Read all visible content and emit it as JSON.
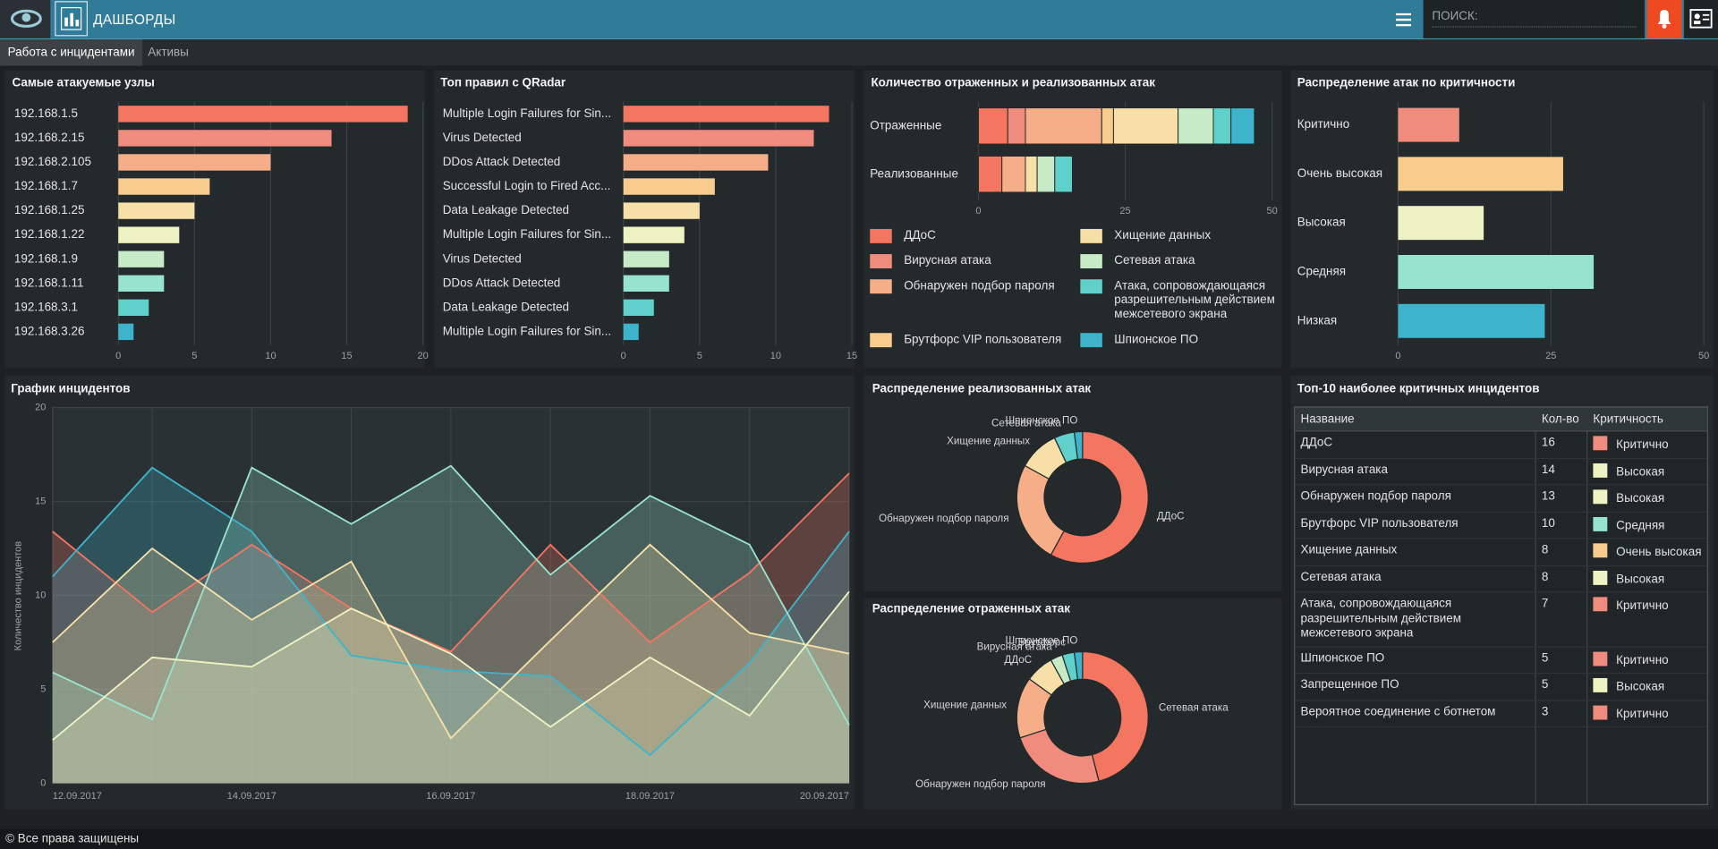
{
  "header": {
    "title": "ДАШБОРДЫ",
    "search_placeholder": "ПОИСК:"
  },
  "tabs": [
    {
      "label": "Работа с инцидентами",
      "active": true
    },
    {
      "label": "Активы",
      "active": false
    }
  ],
  "chart_data": [
    {
      "type": "bar",
      "orientation": "horizontal",
      "title": "Самые атакуемые узлы",
      "categories": [
        "192.168.1.5",
        "192.168.2.15",
        "192.168.2.105",
        "192.168.1.7",
        "192.168.1.25",
        "192.168.1.22",
        "192.168.1.9",
        "192.168.1.11",
        "192.168.3.1",
        "192.168.3.26"
      ],
      "values": [
        19,
        14,
        10,
        6,
        5,
        4,
        3,
        3,
        2,
        1
      ],
      "colors": [
        "#f47560",
        "#f08c7d",
        "#f6ae88",
        "#f8cc8d",
        "#f6e0a7",
        "#eff2c2",
        "#c6ebc6",
        "#97e3cf",
        "#5fd0ca",
        "#3db4cc"
      ],
      "xlim": [
        0,
        20
      ],
      "xticks": [
        0,
        5,
        10,
        15,
        20
      ],
      "grid": true
    },
    {
      "type": "bar",
      "orientation": "horizontal",
      "title": "Топ правил с QRadar",
      "categories": [
        "Multiple Login Failures for Sin...",
        "Virus Detected",
        "DDos Attack Detected",
        "Successful Login to Fired Acc...",
        "Data Leakage Detected",
        "Multiple Login Failures for Sin...",
        "Virus Detected",
        "DDos Attack Detected",
        "Data Leakage Detected",
        "Multiple Login Failures for Sin..."
      ],
      "values": [
        13.5,
        12.5,
        9.5,
        6,
        5,
        4,
        3,
        3,
        2,
        1
      ],
      "colors": [
        "#f47560",
        "#f08c7d",
        "#f6ae88",
        "#f8cc8d",
        "#f6e0a7",
        "#eff2c2",
        "#c6ebc6",
        "#97e3cf",
        "#5fd0ca",
        "#3db4cc"
      ],
      "xlim": [
        0,
        15
      ],
      "xticks": [
        0,
        5,
        10,
        15
      ],
      "grid": true
    },
    {
      "type": "bar",
      "orientation": "horizontal",
      "stacked": true,
      "legend": "bottom",
      "title": "Количество отраженных и реализованных атак",
      "categories": [
        "Отраженные",
        "Реализованные"
      ],
      "series": [
        {
          "name": "ДДоС",
          "color": "#f47560",
          "values": [
            5,
            4
          ]
        },
        {
          "name": "Вирусная атака",
          "color": "#f08c7d",
          "values": [
            3,
            0
          ]
        },
        {
          "name": "Обнаружен подбор пароля",
          "color": "#f6ae88",
          "values": [
            13,
            4
          ]
        },
        {
          "name": "Брутфорс VIP пользователя",
          "color": "#f8cc8d",
          "values": [
            2,
            0
          ]
        },
        {
          "name": "Хищение данных",
          "color": "#f6e0a7",
          "values": [
            11,
            2
          ]
        },
        {
          "name": "Сетевая атака",
          "color": "#c6ebc6",
          "values": [
            6,
            3
          ]
        },
        {
          "name": "Атака, сопровождающаяся разрешительным действием межсетевого экрана",
          "color": "#5fd0ca",
          "values": [
            3,
            3
          ]
        },
        {
          "name": "Шпионское ПО",
          "color": "#3db4cc",
          "values": [
            4,
            0
          ]
        }
      ],
      "xlim": [
        0,
        50
      ],
      "xticks": [
        0,
        25,
        50
      ],
      "grid": true
    },
    {
      "type": "bar",
      "orientation": "horizontal",
      "title": "Распределение атак по критичности",
      "categories": [
        "Критично",
        "Очень высокая",
        "Высокая",
        "Средняя",
        "Низкая"
      ],
      "values": [
        10,
        27,
        14,
        32,
        24
      ],
      "colors": [
        "#f08c7d",
        "#f8cc8d",
        "#eff2c2",
        "#97e3cf",
        "#3db4cc"
      ],
      "xlim": [
        0,
        50
      ],
      "xticks": [
        0,
        25,
        50
      ],
      "grid": true
    },
    {
      "type": "area",
      "title": "График инцидентов",
      "y_label": "Количество инцидентов",
      "categories": [
        "12.09.2017",
        null,
        "14.09.2017",
        null,
        "16.09.2017",
        null,
        "18.09.2017",
        null,
        "20.09.2017"
      ],
      "series": [
        {
          "color": "#f47560",
          "values": [
            13.4,
            9.1,
            12.7,
            9.3,
            7.0,
            12.7,
            7.5,
            11.2,
            16.5
          ]
        },
        {
          "color": "#3db4cc",
          "values": [
            11,
            16.8,
            13.4,
            6.8,
            6,
            5.7,
            1.5,
            6.4,
            13.4
          ]
        },
        {
          "color": "#97e3cf",
          "values": [
            5.9,
            3.4,
            16.8,
            13.8,
            16.9,
            11.1,
            15.3,
            12.7,
            3.1
          ]
        },
        {
          "color": "#f6e0a7",
          "values": [
            7.5,
            12.5,
            8.7,
            11.8,
            2.4,
            7.6,
            12.7,
            8,
            6.9
          ]
        },
        {
          "color": "#eff2c2",
          "values": [
            2.3,
            6.7,
            6.2,
            9.3,
            6.9,
            3.0,
            6.7,
            3.6,
            10.2
          ]
        }
      ],
      "ylim": [
        0,
        20
      ],
      "yticks": [
        0,
        5,
        10,
        15,
        20
      ],
      "grid": true
    },
    {
      "type": "donut",
      "title": "Распределение реализованных атак",
      "categories": [
        "ДДоС",
        "Обнаружен подбор пароля",
        "Хищение данных",
        "Сетевая атака",
        "Шпионское ПО"
      ],
      "values": [
        58,
        25,
        10,
        5,
        2
      ],
      "colors": [
        "#f47560",
        "#f6ae88",
        "#f6e0a7",
        "#5fd0ca",
        "#3db4cc"
      ]
    },
    {
      "type": "donut",
      "title": "Распределение отраженных атак",
      "categories": [
        "Сетевая атака",
        "Обнаружен подбор пароля",
        "Хищение данных",
        "ДДоС",
        "Вирусная атака",
        "Брутфорс",
        "Шпионское ПО"
      ],
      "values": [
        46,
        24,
        15,
        7,
        3,
        3,
        2
      ],
      "colors": [
        "#f47560",
        "#f08c7d",
        "#f6ae88",
        "#f6e0a7",
        "#c6ebc6",
        "#5fd0ca",
        "#3db4cc"
      ]
    }
  ],
  "table": {
    "title": "Топ-10 наиболее критичных инцидентов",
    "columns": [
      "Название",
      "Кол-во",
      "Критичность"
    ],
    "rows": [
      [
        "ДДоС",
        16,
        "Критично"
      ],
      [
        "Вирусная атака",
        14,
        "Высокая"
      ],
      [
        "Обнаружен подбор пароля",
        13,
        "Высокая"
      ],
      [
        "Брутфорс VIP пользователя",
        10,
        "Средняя"
      ],
      [
        "Хищение данных",
        8,
        "Очень высокая"
      ],
      [
        "Сетевая атака",
        8,
        "Высокая"
      ],
      [
        "Атака, сопровождающаяся разрешительным действием межсетевого экрана",
        7,
        "Критично"
      ],
      [
        "Шпионское ПО",
        5,
        "Критично"
      ],
      [
        "Запрещенное ПО",
        5,
        "Высокая"
      ],
      [
        "Вероятное соединение с ботнетом",
        3,
        "Критично"
      ]
    ],
    "row_colors": [
      "#f08c7d",
      "#eff2c2",
      "#eff2c2",
      "#97e3cf",
      "#f8cc8d",
      "#eff2c2",
      "#f08c7d",
      "#f08c7d",
      "#eff2c2",
      "#f08c7d"
    ]
  },
  "footer": "© Все права защищены"
}
